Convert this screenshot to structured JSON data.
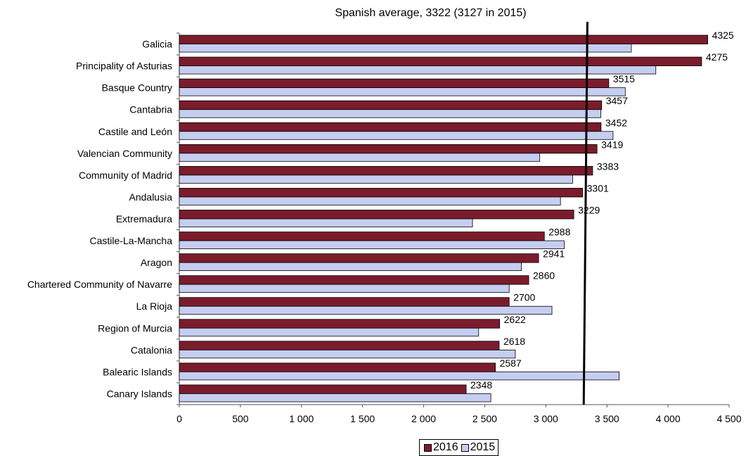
{
  "chart_data": {
    "type": "bar",
    "orientation": "horizontal",
    "title": "Spanish average, 3322 (3127 in 2015)",
    "categories": [
      "Galicia",
      "Principality of Asturias",
      "Basque Country",
      "Cantabria",
      "Castile and León",
      "Valencian Community",
      "Community of Madrid",
      "Andalusia",
      "Extremadura",
      "Castile-La-Mancha",
      "Aragon",
      "Chartered Community of Navarre",
      "La Rioja",
      "Region of Murcia",
      "Catalonia",
      "Balearic Islands",
      "Canary Islands"
    ],
    "series": [
      {
        "name": "2016",
        "color": "#7b1c2c",
        "values": [
          4325,
          4275,
          3515,
          3457,
          3452,
          3419,
          3383,
          3301,
          3229,
          2988,
          2941,
          2860,
          2700,
          2622,
          2618,
          2587,
          2348
        ],
        "labels": [
          "4325",
          "4275",
          "3515",
          "3457",
          "3452",
          "3419",
          "3383",
          "3301",
          "3229",
          "2988",
          "2941",
          "2860",
          "2700",
          "2622",
          "2618",
          "2587",
          "2348"
        ]
      },
      {
        "name": "2015",
        "color": "#c5cef0",
        "values": [
          3700,
          3900,
          3650,
          3450,
          3550,
          2950,
          3220,
          3120,
          2400,
          3150,
          2800,
          2700,
          3050,
          2450,
          2750,
          3600,
          2550
        ]
      }
    ],
    "reference_line": {
      "top_value": 3340,
      "bottom_value": 3310
    },
    "xlim": [
      0,
      4500
    ],
    "xticks": [
      0,
      500,
      1000,
      1500,
      2000,
      2500,
      3000,
      3500,
      4000,
      4500
    ],
    "xtick_labels": [
      "0",
      "500",
      "1 000",
      "1 500",
      "2 000",
      "2 500",
      "3 000",
      "3 500",
      "4 000",
      "4 500"
    ],
    "grid": false,
    "legend_position": "bottom"
  }
}
